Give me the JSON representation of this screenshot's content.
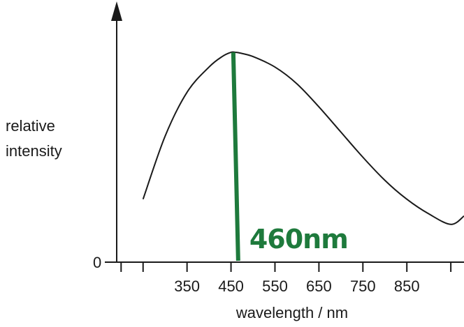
{
  "chart_data": {
    "type": "line",
    "ylabel": [
      "relative",
      "intensity"
    ],
    "xlabel": "wavelength / nm",
    "y_tick_labels": [
      "0"
    ],
    "x_tick_labels": [
      "350",
      "450",
      "550",
      "650",
      "750",
      "850"
    ],
    "x_ticks": [
      350,
      450,
      550,
      650,
      750,
      850
    ],
    "x_minor_ticks": [
      200,
      250,
      950
    ],
    "xlim": [
      190,
      980
    ],
    "ylim": [
      0,
      1.1
    ],
    "series": [
      {
        "x": [
          250,
          300,
          350,
          400,
          430,
          450,
          460,
          470,
          500,
          550,
          600,
          650,
          700,
          750,
          800,
          850,
          900,
          950,
          980
        ],
        "y": [
          0.3,
          0.6,
          0.81,
          0.93,
          0.98,
          1.0,
          1.0,
          0.997,
          0.98,
          0.93,
          0.85,
          0.74,
          0.62,
          0.5,
          0.39,
          0.3,
          0.23,
          0.18,
          0.22
        ]
      }
    ],
    "marker": {
      "x": 460,
      "label": "460nm",
      "color": "#1e7a3c"
    },
    "line_color": "#1a1a1a",
    "axis_color": "#1a1a1a"
  }
}
